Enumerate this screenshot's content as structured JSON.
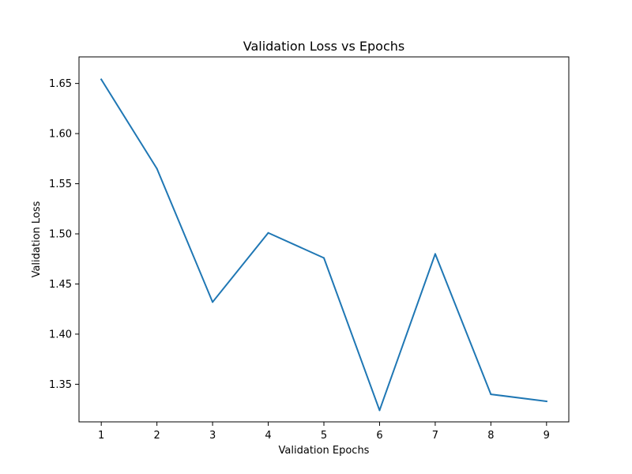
{
  "chart_data": {
    "type": "line",
    "title": "Validation Loss vs Epochs",
    "xlabel": "Validation Epochs",
    "ylabel": "Validation Loss",
    "x": [
      1,
      2,
      3,
      4,
      5,
      6,
      7,
      8,
      9
    ],
    "series": [
      {
        "values": [
          1.654,
          1.565,
          1.432,
          1.501,
          1.476,
          1.324,
          1.48,
          1.34,
          1.333
        ],
        "color": "#1f77b4"
      }
    ],
    "xlim": [
      0.6,
      9.4
    ],
    "ylim": [
      1.3125,
      1.6765
    ],
    "xticks": [
      1,
      2,
      3,
      4,
      5,
      6,
      7,
      8,
      9
    ],
    "xtick_labels": [
      "1",
      "2",
      "3",
      "4",
      "5",
      "6",
      "7",
      "8",
      "9"
    ],
    "yticks": [
      1.35,
      1.4,
      1.45,
      1.5,
      1.55,
      1.6,
      1.65
    ],
    "ytick_labels": [
      "1.35",
      "1.40",
      "1.45",
      "1.50",
      "1.55",
      "1.60",
      "1.65"
    ],
    "grid": false,
    "legend": "none"
  }
}
